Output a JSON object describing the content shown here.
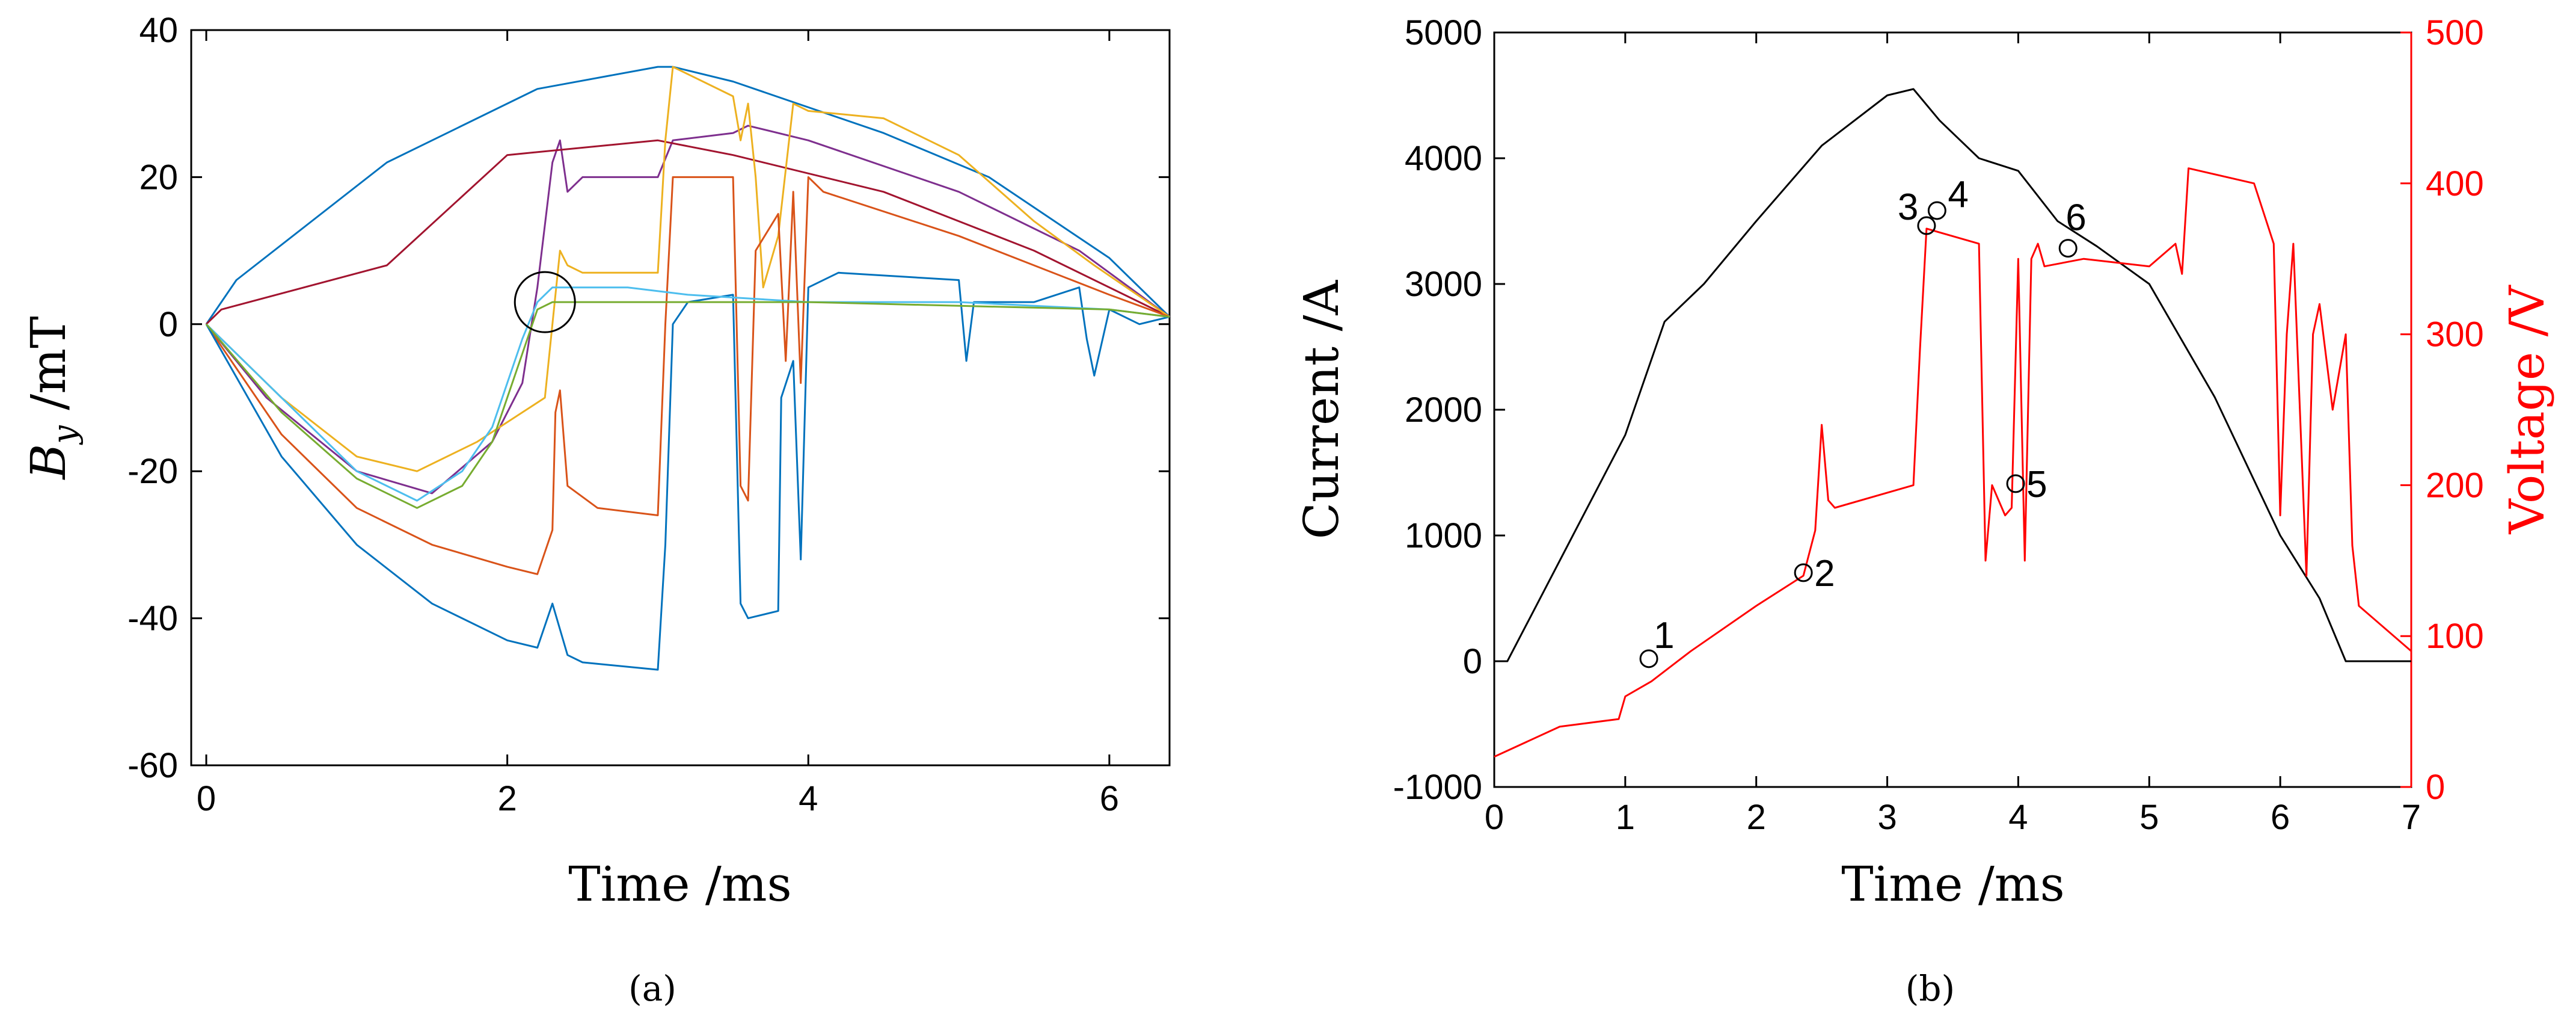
{
  "chart_data": [
    {
      "type": "line",
      "panel": "a",
      "caption": "(a)",
      "xlabel": "Time /ms",
      "ylabel_main": "B",
      "ylabel_sub": "y",
      "ylabel_unit": " /mT",
      "xlim": [
        -0.1,
        6.4
      ],
      "ylim": [
        -60,
        40
      ],
      "xticks": [
        0,
        2,
        4,
        6
      ],
      "xtick_labels": [
        "0",
        "2",
        "4",
        "6"
      ],
      "yticks": [
        40,
        20,
        0,
        -20,
        -40,
        -60
      ],
      "ytick_labels": [
        "40",
        "20",
        "0",
        "-20",
        "-40",
        "-60"
      ],
      "annotation": "circle around curve crossing near t = 2.2 ms, By = 3 mT",
      "annotation_center": [
        2.25,
        3
      ],
      "series": [
        {
          "name": "upper blue",
          "color": "#0072bd",
          "x": [
            0,
            0.1,
            0.2,
            1.2,
            2.2,
            3.0,
            3.1,
            3.5,
            4.5,
            5.2,
            6.0,
            6.4
          ],
          "y": [
            0,
            3,
            6,
            22,
            32,
            35,
            35,
            33,
            26,
            20,
            9,
            1
          ]
        },
        {
          "name": "purple",
          "color": "#7e2f8e",
          "x": [
            0,
            0.4,
            1.0,
            1.5,
            1.9,
            2.1,
            2.2,
            2.3,
            2.35,
            2.4,
            2.5,
            3.0,
            3.1,
            3.5,
            3.6,
            4.0,
            5.0,
            5.8,
            6.4
          ],
          "y": [
            0,
            -10,
            -20,
            -23,
            -16,
            -8,
            5,
            22,
            25,
            18,
            20,
            20,
            25,
            26,
            27,
            25,
            18,
            10,
            1
          ]
        },
        {
          "name": "dark red",
          "color": "#a2142f",
          "x": [
            0,
            0.1,
            1.2,
            2.0,
            3.0,
            3.5,
            4.5,
            5.5,
            6.4
          ],
          "y": [
            0,
            2,
            8,
            23,
            25,
            23,
            18,
            10,
            1
          ]
        },
        {
          "name": "yellow",
          "color": "#edb120",
          "x": [
            0,
            0.5,
            1.0,
            1.4,
            1.8,
            2.1,
            2.25,
            2.3,
            2.35,
            2.4,
            2.5,
            3.0,
            3.05,
            3.1,
            3.2,
            3.5,
            3.55,
            3.6,
            3.65,
            3.7,
            3.8,
            3.9,
            4.0,
            4.5,
            5.0,
            5.5,
            5.9,
            6.4
          ],
          "y": [
            0,
            -10,
            -18,
            -20,
            -16,
            -12,
            -10,
            0,
            10,
            8,
            7,
            7,
            25,
            35,
            34,
            31,
            25,
            30,
            20,
            5,
            12,
            30,
            29,
            28,
            23,
            14,
            8,
            1
          ]
        },
        {
          "name": "orange",
          "color": "#d95319",
          "x": [
            0,
            0.5,
            1.0,
            1.5,
            2.0,
            2.2,
            2.3,
            2.32,
            2.35,
            2.4,
            2.6,
            3.0,
            3.05,
            3.1,
            3.5,
            3.55,
            3.6,
            3.65,
            3.8,
            3.85,
            3.9,
            3.95,
            4.0,
            4.1,
            5.0,
            6.0,
            6.4
          ],
          "y": [
            0,
            -15,
            -25,
            -30,
            -33,
            -34,
            -28,
            -12,
            -9,
            -22,
            -25,
            -26,
            0,
            20,
            20,
            -22,
            -24,
            10,
            15,
            -5,
            18,
            -8,
            20,
            18,
            12,
            4,
            1
          ]
        },
        {
          "name": "lower blue",
          "color": "#0072bd",
          "x": [
            0,
            0.5,
            1.0,
            1.5,
            2.0,
            2.2,
            2.3,
            2.4,
            2.5,
            3.0,
            3.05,
            3.1,
            3.2,
            3.5,
            3.55,
            3.6,
            3.8,
            3.82,
            3.9,
            3.95,
            4.0,
            4.2,
            5.0,
            5.05,
            5.1,
            5.5,
            5.8,
            5.85,
            5.9,
            6.0,
            6.2,
            6.4
          ],
          "y": [
            0,
            -18,
            -30,
            -38,
            -43,
            -44,
            -38,
            -45,
            -46,
            -47,
            -30,
            0,
            3,
            4,
            -38,
            -40,
            -39,
            -10,
            -5,
            -32,
            5,
            7,
            6,
            -5,
            3,
            3,
            5,
            -2,
            -7,
            2,
            0,
            1
          ]
        },
        {
          "name": "light blue",
          "color": "#4dbeee",
          "x": [
            0,
            0.5,
            1.0,
            1.4,
            1.7,
            1.9,
            2.0,
            2.1,
            2.2,
            2.3,
            2.8,
            3.2,
            4.0,
            5.0,
            6.0,
            6.4
          ],
          "y": [
            0,
            -10,
            -20,
            -24,
            -20,
            -14,
            -8,
            -2,
            3,
            5,
            5,
            4,
            3,
            3,
            2,
            1
          ]
        },
        {
          "name": "green",
          "color": "#77ac30",
          "x": [
            0,
            0.5,
            1.0,
            1.4,
            1.7,
            1.9,
            2.0,
            2.1,
            2.2,
            2.3,
            2.8,
            3.2,
            4.0,
            5.0,
            6.0,
            6.4
          ],
          "y": [
            0,
            -12,
            -21,
            -25,
            -22,
            -16,
            -10,
            -4,
            2,
            3,
            3,
            3,
            3,
            2.5,
            2,
            1
          ]
        }
      ]
    },
    {
      "type": "line",
      "panel": "b",
      "caption": "(b)",
      "xlabel": "Time /ms",
      "ylabel_left": "Current /A",
      "ylabel_right": "Voltage /V",
      "xlim": [
        0,
        7
      ],
      "ylim_left": [
        -1000,
        5000
      ],
      "ylim_right": [
        0,
        500
      ],
      "xticks": [
        0,
        1,
        2,
        3,
        4,
        5,
        6,
        7
      ],
      "xtick_labels": [
        "0",
        "1",
        "2",
        "3",
        "4",
        "5",
        "6",
        "7"
      ],
      "yticks_left": [
        5000,
        4000,
        3000,
        2000,
        1000,
        0,
        -1000
      ],
      "ytick_labels_left": [
        "5000",
        "4000",
        "3000",
        "2000",
        "1000",
        "0",
        "-1000"
      ],
      "yticks_right": [
        500,
        400,
        300,
        200,
        100,
        0
      ],
      "ytick_labels_right": [
        "500",
        "400",
        "300",
        "200",
        "100",
        "0"
      ],
      "series": [
        {
          "name": "Current",
          "axis": "left",
          "color": "#000000",
          "x": [
            0,
            0.1,
            0.3,
            0.6,
            1.0,
            1.3,
            1.6,
            2.0,
            2.5,
            3.0,
            3.2,
            3.4,
            3.7,
            4.0,
            4.3,
            4.6,
            5.0,
            5.5,
            6.0,
            6.3,
            6.5,
            6.7,
            7.0
          ],
          "y": [
            0,
            0,
            400,
            1000,
            1800,
            2700,
            3000,
            3500,
            4100,
            4500,
            4550,
            4300,
            4000,
            3900,
            3500,
            3300,
            3000,
            2100,
            1000,
            500,
            0,
            0,
            0
          ]
        },
        {
          "name": "Voltage",
          "axis": "right",
          "color": "#ff0000",
          "x": [
            0,
            0.5,
            0.95,
            1.0,
            1.2,
            1.5,
            2.0,
            2.36,
            2.45,
            2.5,
            2.55,
            2.6,
            3.2,
            3.25,
            3.3,
            3.7,
            3.75,
            3.8,
            3.9,
            3.95,
            4.0,
            4.05,
            4.1,
            4.15,
            4.2,
            4.5,
            5.0,
            5.2,
            5.25,
            5.3,
            5.8,
            5.95,
            6.0,
            6.05,
            6.1,
            6.2,
            6.25,
            6.3,
            6.4,
            6.5,
            6.55,
            6.6,
            7.0
          ],
          "y": [
            20,
            40,
            45,
            60,
            70,
            90,
            120,
            140,
            170,
            240,
            190,
            185,
            200,
            290,
            370,
            360,
            150,
            200,
            180,
            185,
            350,
            150,
            350,
            360,
            345,
            350,
            345,
            360,
            340,
            410,
            400,
            360,
            180,
            300,
            360,
            140,
            300,
            320,
            250,
            300,
            160,
            120,
            90
          ]
        }
      ],
      "markers": [
        {
          "label": "1",
          "t": 1.18,
          "v": 85
        },
        {
          "label": "2",
          "t": 2.36,
          "v": 142
        },
        {
          "label": "3",
          "t": 3.3,
          "v": 372
        },
        {
          "label": "4",
          "t": 3.38,
          "v": 382
        },
        {
          "label": "5",
          "t": 3.98,
          "v": 201
        },
        {
          "label": "6",
          "t": 4.38,
          "v": 357
        }
      ]
    }
  ]
}
